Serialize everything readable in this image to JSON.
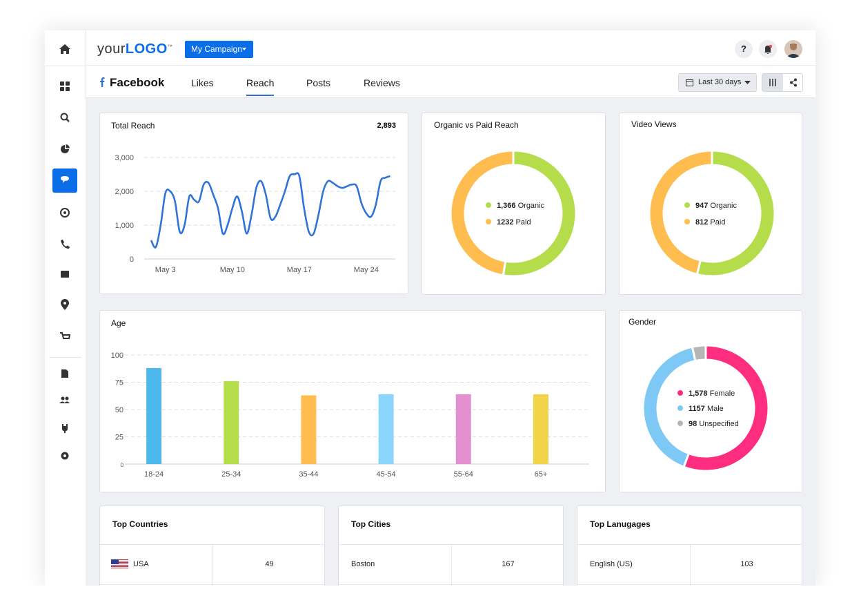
{
  "header": {
    "logo": {
      "text": "your",
      "accent": "LOGO",
      "mark": "™"
    },
    "campaign": "My Campaign",
    "help": "?"
  },
  "nav": {
    "network": "Facebook",
    "tabs": [
      "Likes",
      "Reach",
      "Posts",
      "Reviews"
    ],
    "active_tab": 1,
    "date_range": "Last 30 days"
  },
  "chart_data": [
    {
      "type": "line",
      "title": "Total Reach",
      "total": "2,893",
      "color": "#2f73d9",
      "categories": [
        null,
        null,
        null,
        "May 3",
        null,
        null,
        null,
        null,
        null,
        null,
        null,
        null,
        null,
        null,
        null,
        null,
        null,
        "May 10",
        null,
        null,
        null,
        null,
        null,
        null,
        null,
        null,
        null,
        null,
        null,
        null,
        null,
        "May 17",
        null,
        null,
        null,
        null,
        null,
        null,
        null,
        null,
        null,
        null,
        null,
        null,
        null,
        "May 24",
        null,
        null,
        null,
        null,
        null
      ],
      "values": [
        550,
        350,
        1000,
        1950,
        2000,
        1700,
        800,
        1000,
        1850,
        1750,
        1700,
        2200,
        2250,
        1900,
        1500,
        750,
        1000,
        1500,
        1850,
        1400,
        750,
        1300,
        2100,
        2300,
        1900,
        1200,
        1250,
        1600,
        2000,
        2450,
        2500,
        2450,
        1500,
        800,
        750,
        1300,
        2000,
        2300,
        2250,
        2150,
        2100,
        2150,
        2200,
        2150,
        1650,
        1350,
        1250,
        1600,
        2300,
        2400,
        2450
      ],
      "ylim": [
        0,
        3000
      ],
      "yticks": [
        0,
        {
          "value": 1000,
          "label": "1,000"
        },
        {
          "value": 2000,
          "label": "2,000"
        },
        {
          "value": 3000,
          "label": "3,000"
        }
      ],
      "grid": true
    },
    {
      "type": "pie",
      "title": "Organic vs Paid Reach",
      "categories": [
        "Organic",
        "Paid"
      ],
      "values": [
        1366,
        1232
      ],
      "value_labels": [
        "1,366",
        "1232"
      ],
      "colors": [
        "#b5dc4a",
        "#ffbd4f"
      ],
      "donut": true
    },
    {
      "type": "pie",
      "title": "Video Views",
      "categories": [
        "Organic",
        "Paid"
      ],
      "values": [
        947,
        812
      ],
      "colors": [
        "#b5dc4a",
        "#ffbd4f"
      ],
      "donut": true
    },
    {
      "type": "bar",
      "title": "Age",
      "categories": [
        "18-24",
        "25-34",
        "35-44",
        "45-54",
        "55-64",
        "65+"
      ],
      "values": [
        88,
        76,
        63,
        64,
        64,
        64
      ],
      "colors": [
        "#4db8ea",
        "#b5dc4a",
        "#ffbd4f",
        "#8ad4fd",
        "#e48fd0",
        "#f3d348"
      ],
      "ylim": [
        0,
        100
      ],
      "yticks": [
        0,
        25,
        50,
        75,
        100
      ],
      "grid": true
    },
    {
      "type": "pie",
      "title": "Gender",
      "categories": [
        "Female",
        "Male",
        "Unspecified"
      ],
      "values": [
        1578,
        1157,
        98
      ],
      "value_labels": [
        "1,578",
        "1157",
        "98"
      ],
      "colors": [
        "#ff2d7f",
        "#7ec8f5",
        "#b5b5b5"
      ],
      "donut": true
    }
  ],
  "tables": [
    {
      "title": "Top Countries",
      "rows": [
        [
          "USA",
          49
        ]
      ]
    },
    {
      "title": "Top Cities",
      "rows": [
        [
          "Boston",
          167
        ]
      ]
    },
    {
      "title": "Top Lanugages",
      "rows": [
        [
          "English (US)",
          103
        ]
      ]
    }
  ]
}
